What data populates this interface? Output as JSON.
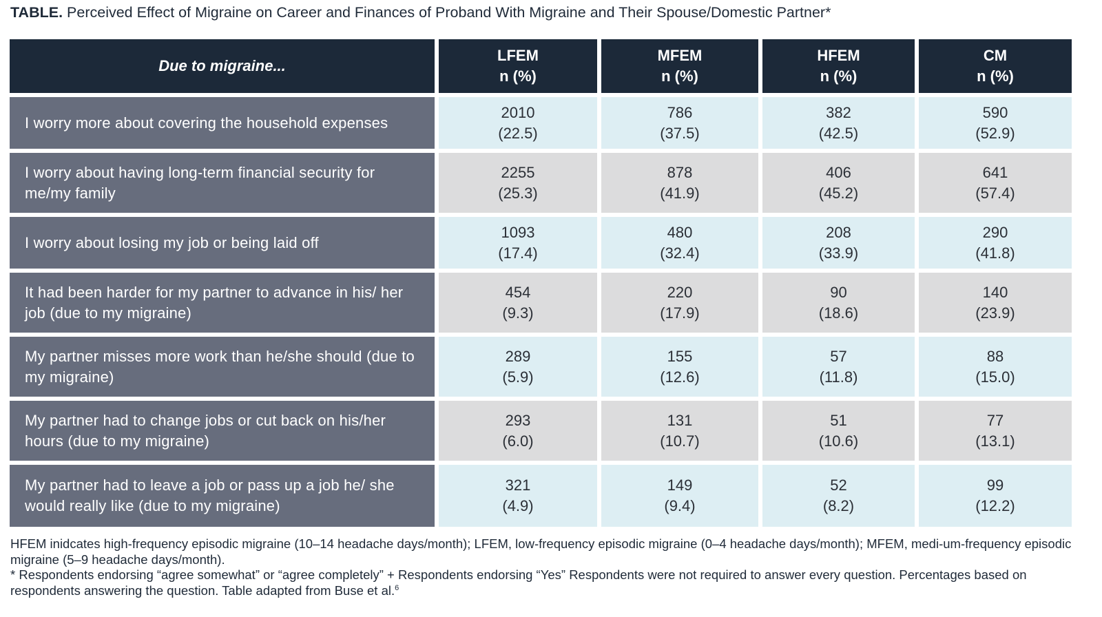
{
  "caption": {
    "label": "TABLE.",
    "text": "Perceived Effect of Migraine on Career and Finances of Proband With Migraine and Their Spouse/Domestic Partner*"
  },
  "table": {
    "row_header": "Due to migraine...",
    "columns": [
      {
        "name": "LFEM",
        "unit": "n (%)"
      },
      {
        "name": "MFEM",
        "unit": "n (%)"
      },
      {
        "name": "HFEM",
        "unit": "n (%)"
      },
      {
        "name": "CM",
        "unit": "n (%)"
      }
    ],
    "rows": [
      {
        "label": "I worry more about covering the household expenses",
        "cells": [
          {
            "n": "2010",
            "pct": "(22.5)"
          },
          {
            "n": "786",
            "pct": "(37.5)"
          },
          {
            "n": "382",
            "pct": "(42.5)"
          },
          {
            "n": "590",
            "pct": "(52.9)"
          }
        ]
      },
      {
        "label": "I worry about having long-term financial security for me/my family",
        "cells": [
          {
            "n": "2255",
            "pct": "(25.3)"
          },
          {
            "n": "878",
            "pct": "(41.9)"
          },
          {
            "n": "406",
            "pct": "(45.2)"
          },
          {
            "n": "641",
            "pct": "(57.4)"
          }
        ]
      },
      {
        "label": "I worry about losing my job or being laid off",
        "cells": [
          {
            "n": "1093",
            "pct": "(17.4)"
          },
          {
            "n": "480",
            "pct": "(32.4)"
          },
          {
            "n": "208",
            "pct": "(33.9)"
          },
          {
            "n": "290",
            "pct": "(41.8)"
          }
        ]
      },
      {
        "label": "It had been harder for my partner to advance in his/ her job (due to my migraine)",
        "cells": [
          {
            "n": "454",
            "pct": "(9.3)"
          },
          {
            "n": "220",
            "pct": "(17.9)"
          },
          {
            "n": "90",
            "pct": "(18.6)"
          },
          {
            "n": "140",
            "pct": "(23.9)"
          }
        ]
      },
      {
        "label": "My partner misses more work than he/she should (due to my migraine)",
        "cells": [
          {
            "n": "289",
            "pct": "(5.9)"
          },
          {
            "n": "155",
            "pct": "(12.6)"
          },
          {
            "n": "57",
            "pct": "(11.8)"
          },
          {
            "n": "88",
            "pct": "(15.0)"
          }
        ]
      },
      {
        "label": "My partner had to change jobs or cut back on his/her hours (due to my migraine)",
        "cells": [
          {
            "n": "293",
            "pct": "(6.0)"
          },
          {
            "n": "131",
            "pct": "(10.7)"
          },
          {
            "n": "51",
            "pct": "(10.6)"
          },
          {
            "n": "77",
            "pct": "(13.1)"
          }
        ]
      },
      {
        "label": "My partner had to leave a job or pass up a job he/ she would really like (due to my migraine)",
        "cells": [
          {
            "n": "321",
            "pct": "(4.9)"
          },
          {
            "n": "149",
            "pct": "(9.4)"
          },
          {
            "n": "52",
            "pct": "(8.2)"
          },
          {
            "n": "99",
            "pct": "(12.2)"
          }
        ]
      }
    ]
  },
  "notes": {
    "abbreviations": "HFEM inidcates high-frequency episodic migraine (10–14 headache days/month); LFEM, low-frequency episodic migraine (0–4 headache days/month); MFEM, medi-um-frequency episodic migraine (5–9 headache days/month).",
    "footnote": "* Respondents endorsing “agree somewhat” or “agree completely” + Respondents endorsing “Yes” Respondents were not required to answer every question. Percentages based on respondents answering the question. Table adapted from Buse et al.",
    "reference": "6"
  },
  "colors": {
    "header_bg": "#1c2939",
    "row_label_bg": "#676d7d",
    "cell_bg_blue": "#ddeef3",
    "cell_bg_gray": "#dcdcdd"
  }
}
